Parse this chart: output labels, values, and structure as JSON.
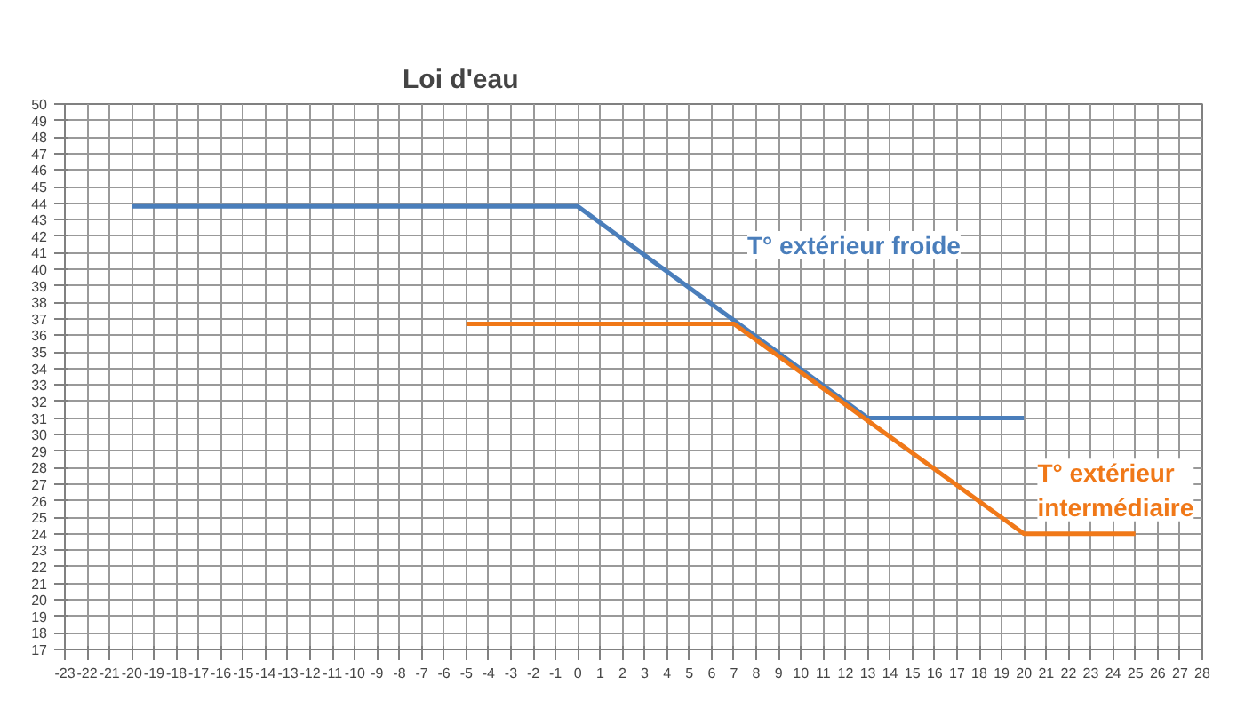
{
  "chart_data": {
    "type": "line",
    "title": "Loi d'eau",
    "series": [
      {
        "name": "T° extérieur froide",
        "color": "#4a7ebb",
        "x": [
          -20,
          0,
          13,
          20
        ],
        "values": [
          43.8,
          43.8,
          31,
          31
        ]
      },
      {
        "name": "T° extérieur intermédiaire",
        "color": "#f07818",
        "x": [
          -5,
          7,
          20,
          25
        ],
        "values": [
          36.7,
          36.7,
          24,
          24
        ]
      }
    ],
    "xlim": [
      -23,
      28
    ],
    "xticks": [
      -23,
      -22,
      -21,
      -20,
      -19,
      -18,
      -17,
      -16,
      -15,
      -14,
      -13,
      -12,
      -11,
      -10,
      -9,
      -8,
      -7,
      -6,
      -5,
      -4,
      -3,
      -2,
      -1,
      0,
      1,
      2,
      3,
      4,
      5,
      6,
      7,
      8,
      9,
      10,
      11,
      12,
      13,
      14,
      15,
      16,
      17,
      18,
      19,
      20,
      21,
      22,
      23,
      24,
      25,
      26,
      27,
      28
    ],
    "ylim": [
      17,
      50
    ],
    "yticks": [
      17,
      18,
      19,
      20,
      21,
      22,
      23,
      24,
      25,
      26,
      27,
      28,
      29,
      30,
      31,
      32,
      33,
      34,
      35,
      36,
      37,
      38,
      39,
      40,
      41,
      42,
      43,
      44,
      45,
      46,
      47,
      48,
      49,
      50
    ],
    "grid": true,
    "marker": "none",
    "line_style": "solid"
  }
}
